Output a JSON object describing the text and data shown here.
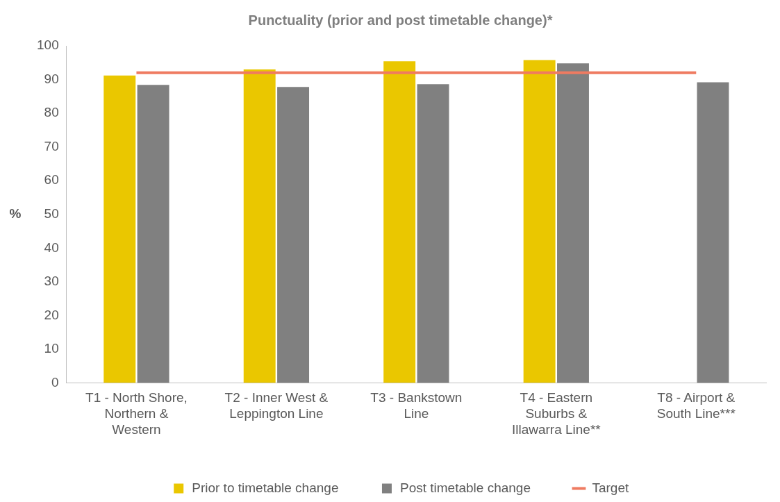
{
  "chart_data": {
    "type": "bar",
    "title": "Punctuality (prior and post timetable change)*",
    "ylabel": "%",
    "categories": [
      "T1 - North Shore, Northern & Western",
      "T2 - Inner West & Leppington Line",
      "T3 - Bankstown Line",
      "T4 - Eastern Suburbs & Illawarra Line**",
      "T8 - Airport & South Line***"
    ],
    "series": [
      {
        "name": "Prior to timetable change",
        "color": "#eac700",
        "values": [
          91.2,
          93.0,
          95.4,
          95.8,
          null
        ]
      },
      {
        "name": "Post timetable change",
        "color": "#808080",
        "values": [
          88.4,
          87.8,
          88.6,
          94.8,
          89.2
        ]
      },
      {
        "name": "Target",
        "type": "line",
        "color": "#ef7b61",
        "values": [
          92,
          92,
          92,
          92,
          92
        ]
      }
    ],
    "ylim": [
      0,
      100
    ],
    "yticks": [
      0,
      10,
      20,
      30,
      40,
      50,
      60,
      70,
      80,
      90,
      100
    ],
    "grid": false,
    "legend": "bottom",
    "marker": "none"
  }
}
